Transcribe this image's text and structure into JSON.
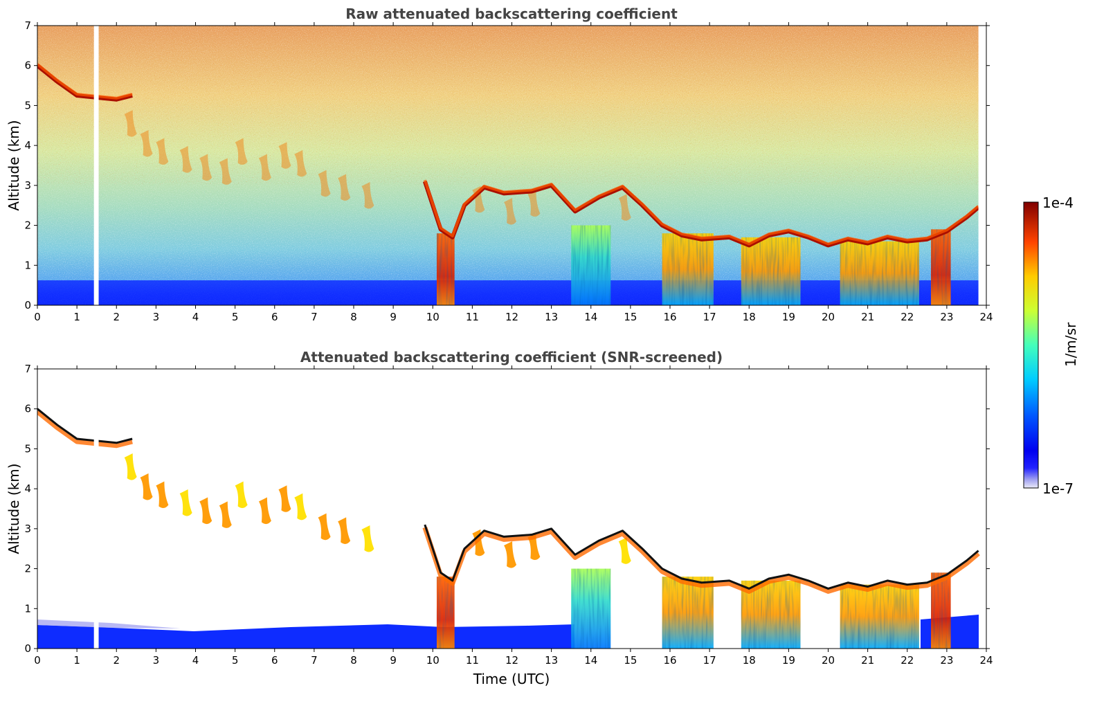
{
  "chart_data": [
    {
      "type": "heatmap",
      "title": "Raw attenuated backscattering coefficient",
      "xlabel": "",
      "ylabel": "Altitude (km)",
      "xlim": [
        0,
        24
      ],
      "ylim": [
        0,
        7
      ],
      "x_ticks": [
        "0",
        "1",
        "2",
        "3",
        "4",
        "5",
        "6",
        "7",
        "8",
        "9",
        "10",
        "11",
        "12",
        "13",
        "14",
        "15",
        "16",
        "17",
        "18",
        "19",
        "20",
        "21",
        "22",
        "23",
        "24"
      ],
      "y_ticks": [
        "0",
        "1",
        "2",
        "3",
        "4",
        "5",
        "6",
        "7"
      ],
      "data_gap": {
        "x_start": 1.43,
        "x_end": 1.55
      },
      "data_end_x": 23.8,
      "cloud_layer": {
        "x": [
          0,
          0.5,
          1,
          1.5,
          2,
          2.4,
          9.8,
          10,
          10.2,
          10.5,
          10.8,
          11.3,
          11.8,
          12.5,
          13,
          13.6,
          14.2,
          14.8,
          15.3,
          15.8,
          16.3,
          16.8,
          17.5,
          18,
          18.5,
          19,
          19.5,
          20,
          20.5,
          21,
          21.5,
          22,
          22.5,
          23,
          23.5,
          23.8
        ],
        "altitude_km": [
          6.0,
          5.6,
          5.25,
          5.2,
          5.15,
          5.25,
          3.1,
          2.5,
          1.9,
          1.7,
          2.5,
          2.95,
          2.8,
          2.85,
          3.0,
          2.35,
          2.7,
          2.95,
          2.5,
          2.0,
          1.75,
          1.65,
          1.7,
          1.5,
          1.75,
          1.85,
          1.7,
          1.5,
          1.65,
          1.55,
          1.7,
          1.6,
          1.65,
          1.85,
          2.2,
          2.45
        ]
      },
      "precipitation_columns": [
        {
          "x_start": 10.1,
          "x_end": 10.55,
          "top_km": 1.8,
          "intensity": 0.9
        },
        {
          "x_start": 13.5,
          "x_end": 14.5,
          "top_km": 2.0,
          "intensity": 0.45
        },
        {
          "x_start": 15.8,
          "x_end": 17.1,
          "top_km": 1.8,
          "intensity": 0.68
        },
        {
          "x_start": 17.8,
          "x_end": 19.3,
          "top_km": 1.7,
          "intensity": 0.7
        },
        {
          "x_start": 20.3,
          "x_end": 22.3,
          "top_km": 1.6,
          "intensity": 0.63
        },
        {
          "x_start": 22.6,
          "x_end": 23.1,
          "top_km": 1.9,
          "intensity": 0.82
        }
      ]
    },
    {
      "type": "heatmap",
      "title": "Attenuated backscattering coefficient (SNR-screened)",
      "xlabel": "Time (UTC)",
      "ylabel": "Altitude (km)",
      "xlim": [
        0,
        24
      ],
      "ylim": [
        0,
        7
      ],
      "x_ticks": [
        "0",
        "1",
        "2",
        "3",
        "4",
        "5",
        "6",
        "7",
        "8",
        "9",
        "10",
        "11",
        "12",
        "13",
        "14",
        "15",
        "16",
        "17",
        "18",
        "19",
        "20",
        "21",
        "22",
        "23",
        "24"
      ],
      "y_ticks": [
        "0",
        "1",
        "2",
        "3",
        "4",
        "5",
        "6",
        "7"
      ],
      "data_gap": {
        "x_start": 1.43,
        "x_end": 1.55
      },
      "data_end_x": 23.8,
      "screened": true
    }
  ],
  "colorbar": {
    "label": "1/m/sr",
    "min_label": "1e-7",
    "max_label": "1e-4",
    "scale": "log",
    "colormap": "jet"
  }
}
